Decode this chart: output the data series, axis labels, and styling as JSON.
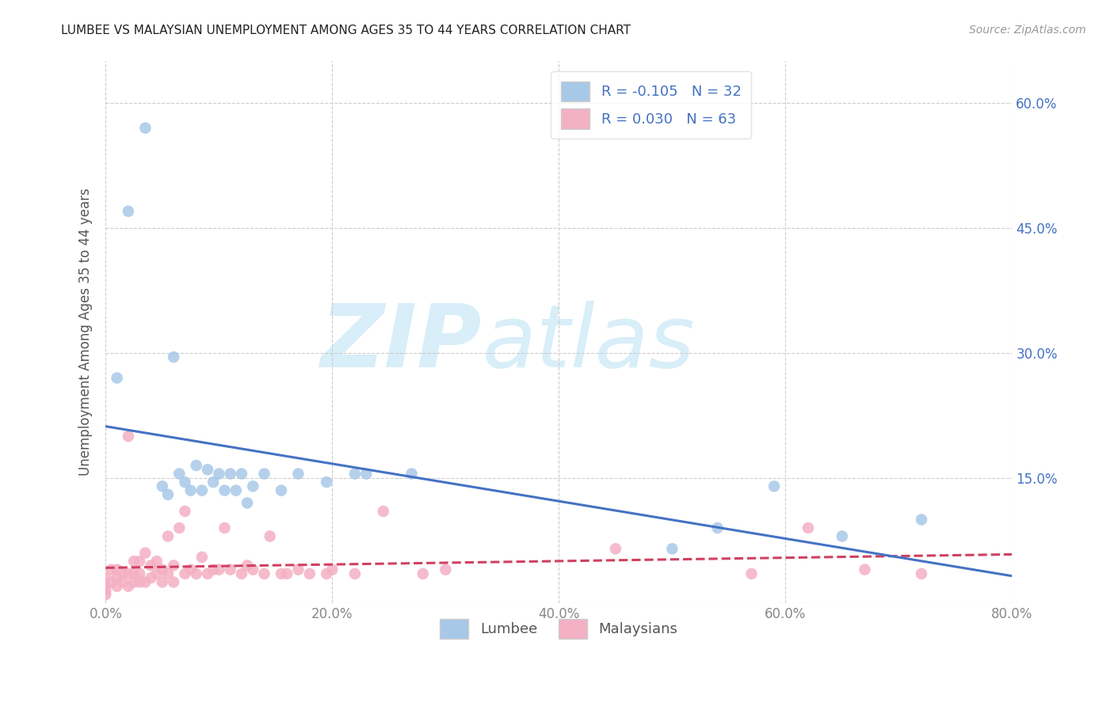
{
  "title": "LUMBEE VS MALAYSIAN UNEMPLOYMENT AMONG AGES 35 TO 44 YEARS CORRELATION CHART",
  "source": "Source: ZipAtlas.com",
  "ylabel": "Unemployment Among Ages 35 to 44 years",
  "xlim": [
    0.0,
    0.8
  ],
  "ylim": [
    0.0,
    0.65
  ],
  "xticks": [
    0.0,
    0.2,
    0.4,
    0.6,
    0.8
  ],
  "yticks": [
    0.0,
    0.15,
    0.3,
    0.45,
    0.6
  ],
  "xtick_labels": [
    "0.0%",
    "20.0%",
    "40.0%",
    "60.0%",
    "80.0%"
  ],
  "right_ytick_labels": [
    "",
    "15.0%",
    "30.0%",
    "45.0%",
    "60.0%"
  ],
  "lumbee_R": -0.105,
  "lumbee_N": 32,
  "malaysian_R": 0.03,
  "malaysian_N": 63,
  "lumbee_color": "#a8c8e8",
  "lumbee_line_color": "#4472c4",
  "malaysian_color": "#f4b0c4",
  "malaysian_line_color": "#d04060",
  "background_color": "#ffffff",
  "watermark_color": "#d8eef8",
  "lumbee_x": [
    0.01,
    0.02,
    0.035,
    0.05,
    0.055,
    0.06,
    0.065,
    0.07,
    0.075,
    0.08,
    0.085,
    0.09,
    0.095,
    0.1,
    0.105,
    0.11,
    0.115,
    0.12,
    0.125,
    0.13,
    0.14,
    0.155,
    0.17,
    0.195,
    0.22,
    0.23,
    0.27,
    0.5,
    0.54,
    0.59,
    0.65,
    0.72
  ],
  "lumbee_y": [
    0.27,
    0.47,
    0.57,
    0.14,
    0.13,
    0.295,
    0.155,
    0.145,
    0.135,
    0.165,
    0.135,
    0.16,
    0.145,
    0.155,
    0.135,
    0.155,
    0.135,
    0.155,
    0.12,
    0.14,
    0.155,
    0.135,
    0.155,
    0.145,
    0.155,
    0.155,
    0.155,
    0.065,
    0.09,
    0.14,
    0.08,
    0.1
  ],
  "malaysian_x": [
    0.0,
    0.0,
    0.0,
    0.0,
    0.005,
    0.005,
    0.01,
    0.01,
    0.01,
    0.015,
    0.015,
    0.02,
    0.02,
    0.02,
    0.025,
    0.025,
    0.025,
    0.03,
    0.03,
    0.03,
    0.035,
    0.035,
    0.04,
    0.04,
    0.045,
    0.045,
    0.05,
    0.05,
    0.055,
    0.055,
    0.06,
    0.06,
    0.065,
    0.07,
    0.07,
    0.075,
    0.08,
    0.085,
    0.09,
    0.095,
    0.1,
    0.105,
    0.11,
    0.12,
    0.125,
    0.13,
    0.14,
    0.145,
    0.155,
    0.16,
    0.17,
    0.18,
    0.195,
    0.2,
    0.22,
    0.245,
    0.28,
    0.3,
    0.45,
    0.57,
    0.62,
    0.67,
    0.72
  ],
  "malaysian_y": [
    0.01,
    0.015,
    0.02,
    0.03,
    0.025,
    0.04,
    0.02,
    0.03,
    0.04,
    0.025,
    0.035,
    0.02,
    0.035,
    0.2,
    0.025,
    0.035,
    0.05,
    0.025,
    0.035,
    0.05,
    0.025,
    0.06,
    0.03,
    0.045,
    0.035,
    0.05,
    0.025,
    0.04,
    0.035,
    0.08,
    0.025,
    0.045,
    0.09,
    0.035,
    0.11,
    0.04,
    0.035,
    0.055,
    0.035,
    0.04,
    0.04,
    0.09,
    0.04,
    0.035,
    0.045,
    0.04,
    0.035,
    0.08,
    0.035,
    0.035,
    0.04,
    0.035,
    0.035,
    0.04,
    0.035,
    0.11,
    0.035,
    0.04,
    0.065,
    0.035,
    0.09,
    0.04,
    0.035
  ]
}
